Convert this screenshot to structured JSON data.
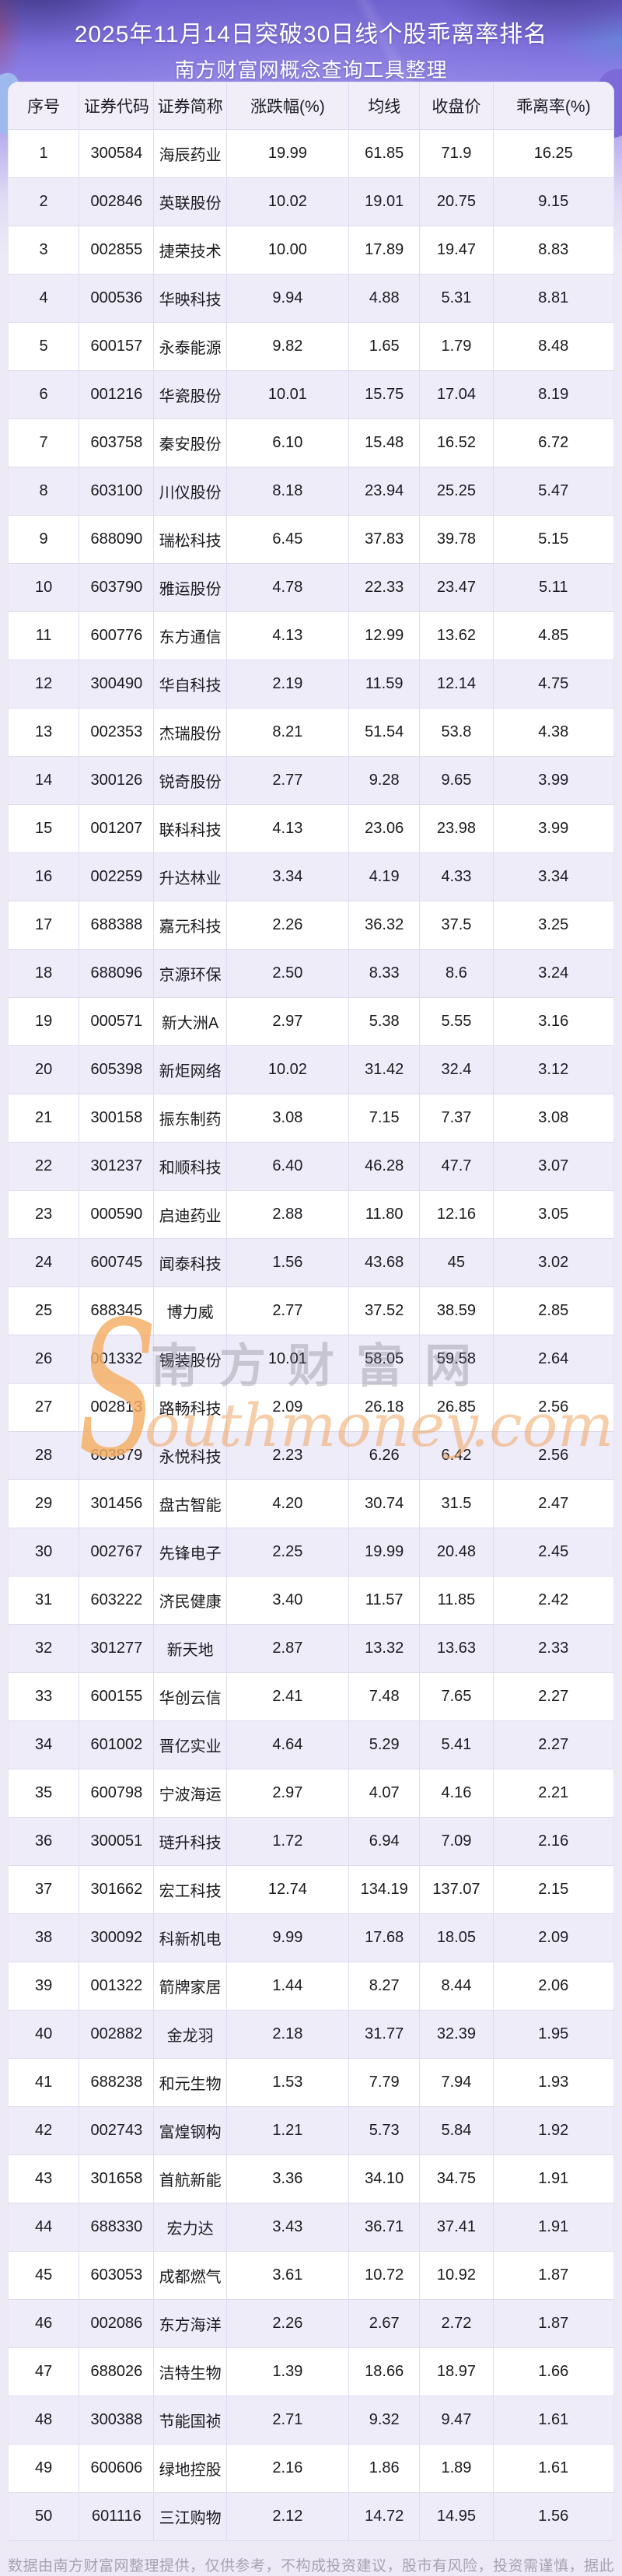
{
  "page": {
    "title_line1": "2025年11月14日突破30日线个股乖离率排名",
    "title_line2": "南方财富网概念查询工具整理",
    "footer": "数据由南方财富网整理提供，仅供参考，不构成投资建议，股市有风险，投资需谨慎，据此操作，风险自担。"
  },
  "watermark": {
    "s": "S",
    "cn": "南方财富网",
    "en": "outhmoney.com"
  },
  "colors": {
    "banner_purple": "#7e70dc",
    "page_bg": "#edeaf6",
    "row_alt_bg": "#efecf9",
    "header_bg": "#f1eefa",
    "border": "#dedaf0",
    "watermark_orange": "#f6ae63",
    "footer_text": "#a7a3b2"
  },
  "table": {
    "columns": [
      "序号",
      "证券代码",
      "证券简称",
      "涨跌幅(%)",
      "均线",
      "收盘价",
      "乖离率(%)"
    ],
    "rows": [
      [
        "1",
        "300584",
        "海辰药业",
        "19.99",
        "61.85",
        "71.9",
        "16.25"
      ],
      [
        "2",
        "002846",
        "英联股份",
        "10.02",
        "19.01",
        "20.75",
        "9.15"
      ],
      [
        "3",
        "002855",
        "捷荣技术",
        "10.00",
        "17.89",
        "19.47",
        "8.83"
      ],
      [
        "4",
        "000536",
        "华映科技",
        "9.94",
        "4.88",
        "5.31",
        "8.81"
      ],
      [
        "5",
        "600157",
        "永泰能源",
        "9.82",
        "1.65",
        "1.79",
        "8.48"
      ],
      [
        "6",
        "001216",
        "华瓷股份",
        "10.01",
        "15.75",
        "17.04",
        "8.19"
      ],
      [
        "7",
        "603758",
        "秦安股份",
        "6.10",
        "15.48",
        "16.52",
        "6.72"
      ],
      [
        "8",
        "603100",
        "川仪股份",
        "8.18",
        "23.94",
        "25.25",
        "5.47"
      ],
      [
        "9",
        "688090",
        "瑞松科技",
        "6.45",
        "37.83",
        "39.78",
        "5.15"
      ],
      [
        "10",
        "603790",
        "雅运股份",
        "4.78",
        "22.33",
        "23.47",
        "5.11"
      ],
      [
        "11",
        "600776",
        "东方通信",
        "4.13",
        "12.99",
        "13.62",
        "4.85"
      ],
      [
        "12",
        "300490",
        "华自科技",
        "2.19",
        "11.59",
        "12.14",
        "4.75"
      ],
      [
        "13",
        "002353",
        "杰瑞股份",
        "8.21",
        "51.54",
        "53.8",
        "4.38"
      ],
      [
        "14",
        "300126",
        "锐奇股份",
        "2.77",
        "9.28",
        "9.65",
        "3.99"
      ],
      [
        "15",
        "001207",
        "联科科技",
        "4.13",
        "23.06",
        "23.98",
        "3.99"
      ],
      [
        "16",
        "002259",
        "升达林业",
        "3.34",
        "4.19",
        "4.33",
        "3.34"
      ],
      [
        "17",
        "688388",
        "嘉元科技",
        "2.26",
        "36.32",
        "37.5",
        "3.25"
      ],
      [
        "18",
        "688096",
        "京源环保",
        "2.50",
        "8.33",
        "8.6",
        "3.24"
      ],
      [
        "19",
        "000571",
        "新大洲A",
        "2.97",
        "5.38",
        "5.55",
        "3.16"
      ],
      [
        "20",
        "605398",
        "新炬网络",
        "10.02",
        "31.42",
        "32.4",
        "3.12"
      ],
      [
        "21",
        "300158",
        "振东制药",
        "3.08",
        "7.15",
        "7.37",
        "3.08"
      ],
      [
        "22",
        "301237",
        "和顺科技",
        "6.40",
        "46.28",
        "47.7",
        "3.07"
      ],
      [
        "23",
        "000590",
        "启迪药业",
        "2.88",
        "11.80",
        "12.16",
        "3.05"
      ],
      [
        "24",
        "600745",
        "闻泰科技",
        "1.56",
        "43.68",
        "45",
        "3.02"
      ],
      [
        "25",
        "688345",
        "博力威",
        "2.77",
        "37.52",
        "38.59",
        "2.85"
      ],
      [
        "26",
        "001332",
        "锡装股份",
        "10.01",
        "58.05",
        "59.58",
        "2.64"
      ],
      [
        "27",
        "002813",
        "路畅科技",
        "2.09",
        "26.18",
        "26.85",
        "2.56"
      ],
      [
        "28",
        "603879",
        "永悦科技",
        "2.23",
        "6.26",
        "6.42",
        "2.56"
      ],
      [
        "29",
        "301456",
        "盘古智能",
        "4.20",
        "30.74",
        "31.5",
        "2.47"
      ],
      [
        "30",
        "002767",
        "先锋电子",
        "2.25",
        "19.99",
        "20.48",
        "2.45"
      ],
      [
        "31",
        "603222",
        "济民健康",
        "3.40",
        "11.57",
        "11.85",
        "2.42"
      ],
      [
        "32",
        "301277",
        "新天地",
        "2.87",
        "13.32",
        "13.63",
        "2.33"
      ],
      [
        "33",
        "600155",
        "华创云信",
        "2.41",
        "7.48",
        "7.65",
        "2.27"
      ],
      [
        "34",
        "601002",
        "晋亿实业",
        "4.64",
        "5.29",
        "5.41",
        "2.27"
      ],
      [
        "35",
        "600798",
        "宁波海运",
        "2.97",
        "4.07",
        "4.16",
        "2.21"
      ],
      [
        "36",
        "300051",
        "琏升科技",
        "1.72",
        "6.94",
        "7.09",
        "2.16"
      ],
      [
        "37",
        "301662",
        "宏工科技",
        "12.74",
        "134.19",
        "137.07",
        "2.15"
      ],
      [
        "38",
        "300092",
        "科新机电",
        "9.99",
        "17.68",
        "18.05",
        "2.09"
      ],
      [
        "39",
        "001322",
        "箭牌家居",
        "1.44",
        "8.27",
        "8.44",
        "2.06"
      ],
      [
        "40",
        "002882",
        "金龙羽",
        "2.18",
        "31.77",
        "32.39",
        "1.95"
      ],
      [
        "41",
        "688238",
        "和元生物",
        "1.53",
        "7.79",
        "7.94",
        "1.93"
      ],
      [
        "42",
        "002743",
        "富煌钢构",
        "1.21",
        "5.73",
        "5.84",
        "1.92"
      ],
      [
        "43",
        "301658",
        "首航新能",
        "3.36",
        "34.10",
        "34.75",
        "1.91"
      ],
      [
        "44",
        "688330",
        "宏力达",
        "3.43",
        "36.71",
        "37.41",
        "1.91"
      ],
      [
        "45",
        "603053",
        "成都燃气",
        "3.61",
        "10.72",
        "10.92",
        "1.87"
      ],
      [
        "46",
        "002086",
        "东方海洋",
        "2.26",
        "2.67",
        "2.72",
        "1.87"
      ],
      [
        "47",
        "688026",
        "洁特生物",
        "1.39",
        "18.66",
        "18.97",
        "1.66"
      ],
      [
        "48",
        "300388",
        "节能国祯",
        "2.71",
        "9.32",
        "9.47",
        "1.61"
      ],
      [
        "49",
        "600606",
        "绿地控股",
        "2.16",
        "1.86",
        "1.89",
        "1.61"
      ],
      [
        "50",
        "601116",
        "三江购物",
        "2.12",
        "14.72",
        "14.95",
        "1.56"
      ]
    ]
  }
}
